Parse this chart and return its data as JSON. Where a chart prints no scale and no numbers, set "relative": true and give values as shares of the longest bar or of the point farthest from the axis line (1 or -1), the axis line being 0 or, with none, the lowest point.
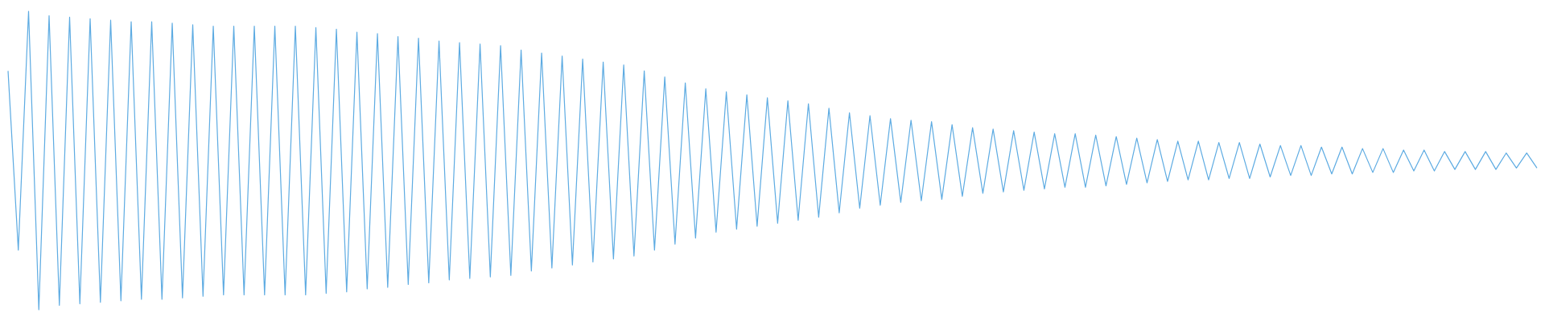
{
  "chart_data": {
    "type": "line",
    "relative": true,
    "line_style": "solid",
    "categories": [
      null,
      null,
      null,
      null,
      null,
      null,
      null,
      null,
      null,
      null,
      null,
      null,
      null,
      null,
      null,
      null,
      null,
      null,
      null,
      null,
      null,
      null,
      null,
      null,
      null,
      null,
      null,
      null,
      null,
      null,
      null,
      null,
      null,
      null,
      null,
      null,
      null,
      null,
      null,
      null,
      null,
      null,
      null,
      null,
      null,
      null,
      null,
      null,
      null,
      null,
      null,
      null,
      null,
      null,
      null,
      null,
      null,
      null,
      null,
      null,
      null,
      null,
      null,
      null,
      null,
      null,
      null,
      null,
      null,
      null,
      null,
      null,
      null,
      null,
      null,
      null,
      null,
      null,
      null,
      null,
      null,
      null,
      null,
      null,
      null,
      null,
      null,
      null,
      null,
      null,
      null,
      null,
      null,
      null,
      null,
      null,
      null,
      null,
      null,
      null,
      null,
      null,
      null,
      null,
      null,
      null,
      null,
      null,
      null,
      null,
      null,
      null,
      null,
      null,
      null,
      null,
      null,
      null,
      null,
      null,
      null,
      null,
      null,
      null,
      null,
      null,
      null,
      null,
      null,
      null,
      null,
      null,
      null,
      null,
      null,
      null,
      null,
      null,
      null,
      null,
      null,
      null,
      null,
      null,
      null,
      null,
      null,
      null,
      null,
      null
    ],
    "series": [
      {
        "color": "#5dabe2",
        "values": [
          0.8,
          0.2,
          1,
          0,
          0.985,
          0.015,
          0.98,
          0.02,
          0.975,
          0.025,
          0.97,
          0.03,
          0.965,
          0.035,
          0.965,
          0.035,
          0.96,
          0.04,
          0.955,
          0.045,
          0.95,
          0.05,
          0.95,
          0.05,
          0.95,
          0.05,
          0.95,
          0.05,
          0.95,
          0.05,
          0.945,
          0.055,
          0.94,
          0.06,
          0.93,
          0.07,
          0.925,
          0.075,
          0.915,
          0.085,
          0.91,
          0.09,
          0.9,
          0.1,
          0.895,
          0.105,
          0.89,
          0.11,
          0.885,
          0.115,
          0.87,
          0.13,
          0.86,
          0.14,
          0.85,
          0.15,
          0.84,
          0.16,
          0.83,
          0.17,
          0.82,
          0.18,
          0.8,
          0.2,
          0.78,
          0.22,
          0.76,
          0.24,
          0.74,
          0.26,
          0.73,
          0.27,
          0.72,
          0.28,
          0.71,
          0.29,
          0.7,
          0.3,
          0.69,
          0.31,
          0.675,
          0.325,
          0.66,
          0.34,
          0.65,
          0.35,
          0.64,
          0.36,
          0.635,
          0.365,
          0.63,
          0.37,
          0.62,
          0.38,
          0.61,
          0.39,
          0.605,
          0.395,
          0.6,
          0.4,
          0.595,
          0.405,
          0.59,
          0.41,
          0.59,
          0.41,
          0.585,
          0.415,
          0.58,
          0.42,
          0.575,
          0.425,
          0.57,
          0.43,
          0.565,
          0.435,
          0.565,
          0.435,
          0.56,
          0.44,
          0.56,
          0.44,
          0.555,
          0.445,
          0.55,
          0.45,
          0.55,
          0.45,
          0.545,
          0.455,
          0.545,
          0.455,
          0.54,
          0.46,
          0.54,
          0.46,
          0.535,
          0.465,
          0.535,
          0.465,
          0.53,
          0.47,
          0.53,
          0.47,
          0.53,
          0.47,
          0.525,
          0.475,
          0.525,
          0.475
        ]
      }
    ]
  }
}
